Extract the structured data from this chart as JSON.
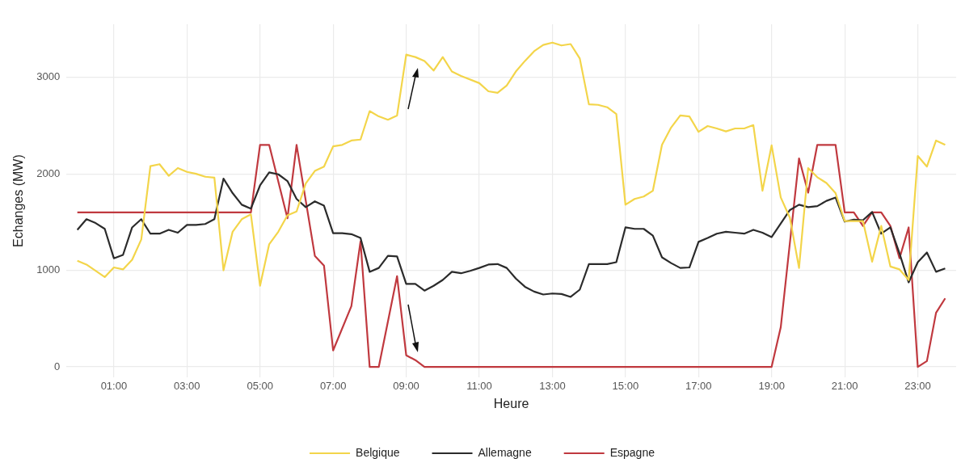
{
  "chart_data": {
    "type": "line",
    "xlabel": "Heure",
    "ylabel": "Echanges (MW)",
    "xlim": [
      -0.3,
      24.05
    ],
    "ylim": [
      -110,
      3550
    ],
    "xticks": [
      {
        "value": 1,
        "label": "01:00"
      },
      {
        "value": 3,
        "label": "03:00"
      },
      {
        "value": 5,
        "label": "05:00"
      },
      {
        "value": 7,
        "label": "07:00"
      },
      {
        "value": 9,
        "label": "09:00"
      },
      {
        "value": 11,
        "label": "11:00"
      },
      {
        "value": 13,
        "label": "13:00"
      },
      {
        "value": 15,
        "label": "15:00"
      },
      {
        "value": 17,
        "label": "17:00"
      },
      {
        "value": 19,
        "label": "19:00"
      },
      {
        "value": 21,
        "label": "21:00"
      },
      {
        "value": 23,
        "label": "23:00"
      }
    ],
    "yticks": [
      0,
      1000,
      2000,
      3000
    ],
    "grid": true,
    "legend": "bottom",
    "marker": "none",
    "line_style": "solid",
    "series": [
      {
        "name": "Belgique",
        "color": "#f3d54a",
        "x": [
          0,
          0.25,
          0.75,
          1,
          1.25,
          1.5,
          1.75,
          2,
          2.25,
          2.5,
          2.75,
          3,
          3.25,
          3.5,
          3.75,
          4,
          4.25,
          4.5,
          4.75,
          5,
          5.25,
          5.5,
          5.75,
          6,
          6.25,
          6.5,
          6.75,
          7,
          7.25,
          7.5,
          7.75,
          8,
          8.25,
          8.5,
          8.75,
          9,
          9.25,
          9.5,
          9.75,
          10,
          10.25,
          10.5,
          11,
          11.25,
          11.5,
          11.75,
          12,
          12.25,
          12.5,
          12.75,
          13,
          13.25,
          13.5,
          13.75,
          14,
          14.25,
          14.5,
          14.75,
          15,
          15.25,
          15.5,
          15.75,
          16,
          16.25,
          16.5,
          16.75,
          17,
          17.25,
          17.5,
          17.75,
          18,
          18.25,
          18.5,
          18.75,
          19,
          19.25,
          19.5,
          19.75,
          20,
          20.25,
          20.5,
          20.75,
          21,
          21.25,
          21.5,
          21.75,
          22,
          22.25,
          22.5,
          22.75,
          23,
          23.25,
          23.5,
          23.75
        ],
        "values": [
          1100,
          1060,
          930,
          1030,
          1010,
          1110,
          1320,
          2080,
          2100,
          1980,
          2060,
          2020,
          2000,
          1970,
          1960,
          1000,
          1400,
          1530,
          1580,
          840,
          1270,
          1400,
          1570,
          1610,
          1900,
          2030,
          2075,
          2285,
          2300,
          2345,
          2355,
          2650,
          2595,
          2560,
          2605,
          3235,
          3210,
          3170,
          3070,
          3210,
          3060,
          3015,
          2940,
          2855,
          2840,
          2915,
          3060,
          3170,
          3270,
          3335,
          3360,
          3330,
          3345,
          3195,
          2720,
          2715,
          2690,
          2620,
          1680,
          1740,
          1765,
          1825,
          2300,
          2480,
          2605,
          2595,
          2435,
          2495,
          2470,
          2440,
          2470,
          2470,
          2505,
          1825,
          2295,
          1755,
          1545,
          1025,
          2060,
          1965,
          1905,
          1800,
          1510,
          1510,
          1510,
          1090,
          1460,
          1040,
          1010,
          900,
          2185,
          2075,
          2345,
          2300
        ]
      },
      {
        "name": "Allemagne",
        "color": "#2b2b2b",
        "x": [
          0,
          0.25,
          0.5,
          0.75,
          1,
          1.25,
          1.5,
          1.75,
          2,
          2.25,
          2.5,
          2.75,
          3,
          3.25,
          3.5,
          3.75,
          4,
          4.25,
          4.5,
          4.75,
          5,
          5.25,
          5.5,
          5.75,
          6,
          6.25,
          6.5,
          6.75,
          7,
          7.25,
          7.5,
          7.75,
          8,
          8.25,
          8.5,
          8.75,
          9,
          9.25,
          9.5,
          9.75,
          10,
          10.25,
          10.5,
          10.75,
          11,
          11.25,
          11.5,
          11.75,
          12,
          12.25,
          12.5,
          12.75,
          13,
          13.25,
          13.5,
          13.75,
          14,
          14.25,
          14.5,
          14.75,
          15,
          15.25,
          15.5,
          15.75,
          16,
          16.25,
          16.5,
          16.75,
          17,
          17.25,
          17.5,
          17.75,
          18,
          18.25,
          18.5,
          18.75,
          19,
          19.25,
          19.5,
          19.75,
          20,
          20.25,
          20.5,
          20.75,
          21,
          21.25,
          21.5,
          21.75,
          22,
          22.25,
          22.5,
          22.75,
          23,
          23.25,
          23.5,
          23.75
        ],
        "values": [
          1420,
          1530,
          1490,
          1430,
          1125,
          1160,
          1445,
          1530,
          1380,
          1380,
          1420,
          1390,
          1470,
          1470,
          1480,
          1530,
          1950,
          1800,
          1680,
          1640,
          1880,
          2015,
          1995,
          1925,
          1740,
          1655,
          1715,
          1670,
          1385,
          1385,
          1375,
          1335,
          985,
          1025,
          1150,
          1145,
          860,
          860,
          790,
          840,
          900,
          985,
          970,
          995,
          1025,
          1060,
          1065,
          1025,
          915,
          830,
          780,
          750,
          760,
          755,
          725,
          800,
          1065,
          1065,
          1065,
          1085,
          1445,
          1430,
          1430,
          1360,
          1135,
          1075,
          1025,
          1030,
          1295,
          1335,
          1380,
          1400,
          1390,
          1380,
          1420,
          1390,
          1345,
          1485,
          1625,
          1680,
          1655,
          1665,
          1720,
          1755,
          1505,
          1525,
          1520,
          1605,
          1380,
          1445,
          1175,
          875,
          1085,
          1185,
          985,
          1020
        ]
      },
      {
        "name": "Espagne",
        "color": "#c0393f",
        "x": [
          0,
          4.75,
          5,
          5.25,
          5.75,
          6,
          6.5,
          6.75,
          7,
          7.5,
          7.75,
          8,
          8.25,
          8.75,
          9,
          9.25,
          9.5,
          19,
          19.25,
          19.75,
          20,
          20.25,
          20.75,
          21,
          21.25,
          21.5,
          21.75,
          22,
          22.25,
          22.5,
          22.75,
          23,
          23.25,
          23.5,
          23.75
        ],
        "values": [
          1600,
          1600,
          2300,
          2300,
          1540,
          2300,
          1150,
          1050,
          170,
          630,
          1300,
          0,
          0,
          940,
          120,
          70,
          0,
          0,
          410,
          2160,
          1805,
          2300,
          2300,
          1600,
          1600,
          1460,
          1600,
          1600,
          1460,
          1125,
          1445,
          0,
          60,
          560,
          710
        ]
      }
    ]
  }
}
